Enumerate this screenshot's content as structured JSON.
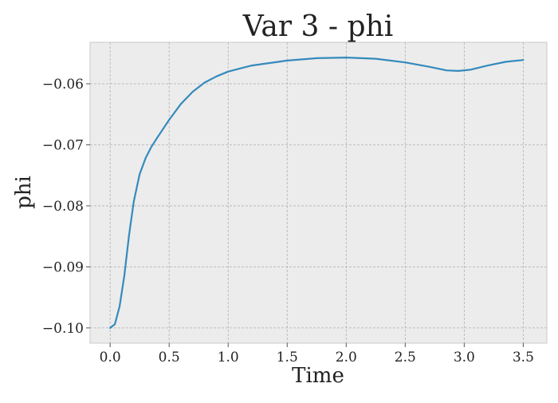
{
  "chart_data": {
    "type": "line",
    "title": "Var 3 - phi",
    "xlabel": "Time",
    "ylabel": "phi",
    "xlim": [
      -0.17,
      3.7
    ],
    "ylim": [
      -0.1025,
      -0.0532
    ],
    "xticks": [
      0.0,
      0.5,
      1.0,
      1.5,
      2.0,
      2.5,
      3.0,
      3.5
    ],
    "xtick_labels": [
      "0.0",
      "0.5",
      "1.0",
      "1.5",
      "2.0",
      "2.5",
      "3.0",
      "3.5"
    ],
    "yticks": [
      -0.1,
      -0.09,
      -0.08,
      -0.07,
      -0.06
    ],
    "ytick_labels": [
      "−0.10",
      "−0.09",
      "−0.08",
      "−0.07",
      "−0.06"
    ],
    "grid": true,
    "background": "#ececec",
    "series": [
      {
        "color": "#348abd",
        "x": [
          0.0,
          0.04,
          0.08,
          0.12,
          0.16,
          0.2,
          0.25,
          0.3,
          0.35,
          0.4,
          0.5,
          0.6,
          0.7,
          0.8,
          0.9,
          1.0,
          1.2,
          1.5,
          1.75,
          2.0,
          2.25,
          2.5,
          2.7,
          2.85,
          2.95,
          3.05,
          3.2,
          3.35,
          3.5
        ],
        "y": [
          -0.1,
          -0.0994,
          -0.0965,
          -0.0915,
          -0.0848,
          -0.0793,
          -0.0748,
          -0.0722,
          -0.0703,
          -0.0688,
          -0.0659,
          -0.0633,
          -0.0613,
          -0.0598,
          -0.0588,
          -0.058,
          -0.057,
          -0.0562,
          -0.0558,
          -0.0557,
          -0.0559,
          -0.0565,
          -0.0572,
          -0.0578,
          -0.0579,
          -0.0577,
          -0.057,
          -0.0564,
          -0.0561
        ]
      }
    ]
  }
}
